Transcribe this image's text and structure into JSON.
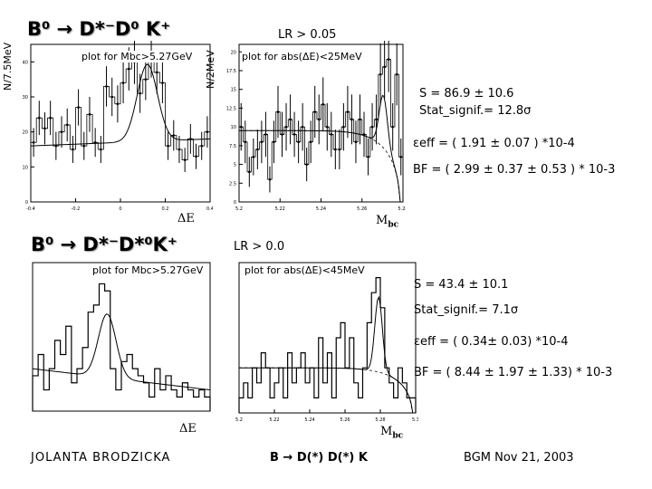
{
  "slide": {
    "top_left": {
      "decay_title": "B⁰ → D*⁻D⁰ K⁺",
      "plot_caption": "plot for Mbc>5.27GeV",
      "y_axis_label": "N/7.5MeV",
      "x_axis_label": "ΔE"
    },
    "top_right": {
      "cut_label": "LR > 0.05",
      "plot_caption": "plot for abs(ΔE)<25MeV",
      "y_axis_label": "N/2MeV",
      "x_axis_label": "M",
      "x_axis_sub": "bc"
    },
    "top_results": {
      "signal": "S = 86.9 ± 10.6",
      "significance": "Stat_signif.= 12.8σ",
      "efficiency": "εeff = ( 1.91 ± 0.07 ) *10-4",
      "branching_fraction": "BF = ( 2.99 ± 0.37 ± 0.53 ) * 10-3"
    },
    "bottom_left": {
      "decay_title": "B⁰ → D*⁻D*⁰K⁺",
      "plot_caption": "plot for Mbc>5.27GeV",
      "x_axis_label": "ΔE"
    },
    "bottom_right": {
      "cut_label": "LR > 0.0",
      "plot_caption": "plot for abs(ΔE)<45MeV",
      "x_axis_label": "M",
      "x_axis_sub": "bc"
    },
    "bottom_results": {
      "signal": "S = 43.4 ± 10.1",
      "significance": "Stat_signif.= 7.1σ",
      "efficiency": "εeff = ( 0.34± 0.03) *10-4",
      "branching_fraction": "BF = ( 8.44 ± 1.97 ± 1.33) * 10-3"
    },
    "footer": {
      "author": "JOLANTA BRODZICKA",
      "process": "B → D(*) D(*) K",
      "meeting": "BGM Nov 21, 2003"
    }
  },
  "chart_data": [
    {
      "type": "histogram",
      "name": "top-left dE distribution",
      "title": "B0 -> D*- D0 K+",
      "xlabel": "ΔE",
      "ylabel": "N/7.5MeV",
      "x_ticks": [
        "-0.4",
        "-0.2",
        "0",
        "0.2",
        "0.4"
      ],
      "y_ticks": [
        "0",
        "10",
        "20",
        "30",
        "40"
      ],
      "xlim": [
        -0.4,
        0.4
      ],
      "ylim": [
        0,
        45
      ],
      "values": [
        17,
        24,
        21,
        24,
        16,
        20,
        22,
        15,
        27,
        16,
        25,
        17,
        15,
        33,
        30,
        28,
        34,
        38,
        40,
        31,
        35,
        42,
        37,
        34,
        16,
        19,
        15,
        12,
        18,
        13,
        16,
        20
      ]
    },
    {
      "type": "histogram",
      "name": "top-right Mbc distribution",
      "xlabel": "Mbc",
      "ylabel": "N/2MeV",
      "x_ticks": [
        "5.2",
        "5.22",
        "5.24",
        "5.26",
        "5.28"
      ],
      "y_ticks": [
        "0",
        "2.5",
        "5",
        "7.5",
        "10",
        "12.5",
        "15",
        "17.5",
        "20"
      ],
      "xlim": [
        5.2,
        5.29
      ],
      "ylim": [
        0,
        21
      ],
      "values": [
        10,
        8,
        4,
        6,
        7,
        8,
        9,
        3,
        8,
        12,
        9,
        10,
        11,
        9,
        8,
        10,
        5,
        8,
        12,
        11,
        13,
        10,
        9,
        7,
        7,
        10,
        12,
        11,
        8,
        11,
        9,
        6,
        10,
        11,
        17,
        18,
        19,
        10,
        17,
        6
      ]
    },
    {
      "type": "histogram",
      "name": "bottom-left dE distribution",
      "xlabel": "ΔE",
      "xlim": [
        -0.4,
        0.4
      ],
      "ylim": [
        0,
        21
      ],
      "values": [
        5,
        8,
        3,
        6,
        10,
        8,
        12,
        4,
        6,
        9,
        14,
        15,
        18,
        17,
        6,
        3,
        7,
        8,
        6,
        5,
        4,
        2,
        6,
        3,
        5,
        3,
        2,
        4,
        3,
        2,
        3,
        2
      ]
    },
    {
      "type": "histogram",
      "name": "bottom-right Mbc distribution",
      "xlabel": "Mbc",
      "x_ticks": [
        "5.2",
        "5.22",
        "5.24",
        "5.26",
        "5.28",
        "5.3"
      ],
      "xlim": [
        5.2,
        5.3
      ],
      "ylim": [
        0,
        10
      ],
      "values": [
        1,
        2,
        1,
        3,
        2,
        4,
        3,
        1,
        2,
        3,
        1,
        4,
        2,
        3,
        4,
        2,
        3,
        1,
        5,
        2,
        4,
        1,
        5,
        6,
        3,
        5,
        2,
        1,
        3,
        6,
        8,
        9,
        7,
        3,
        2,
        1,
        3,
        2,
        1,
        1
      ]
    }
  ]
}
